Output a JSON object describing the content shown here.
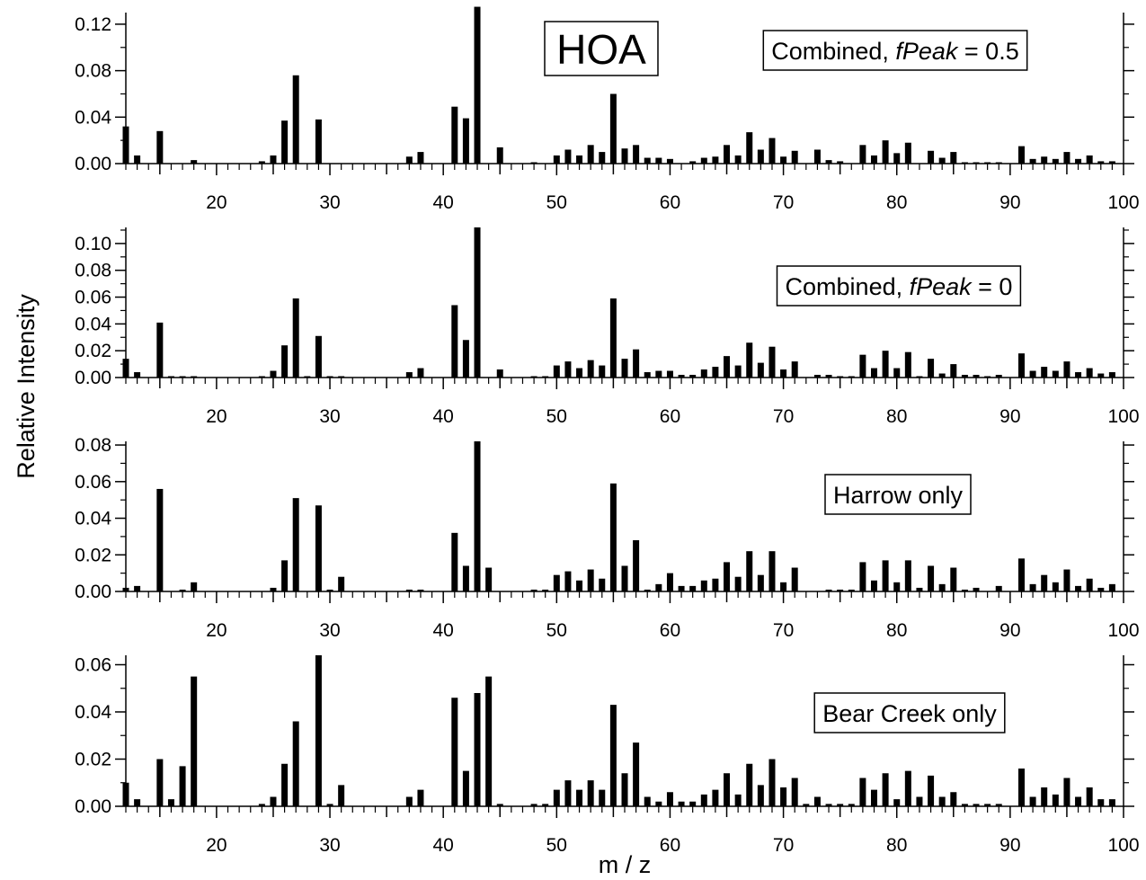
{
  "title": "HOA",
  "ylabel": "Relative Intensity",
  "xlabel": "m / z",
  "colors": {
    "bars": "#000000",
    "axes": "#000000",
    "background": "#ffffff"
  },
  "chart_data": [
    {
      "type": "bar",
      "label": {
        "text": "Combined, ",
        "italic": "fPeak",
        "suffix": " = 0.5"
      },
      "ylim": [
        0,
        0.13
      ],
      "yticks": [
        0.0,
        0.04,
        0.08,
        0.12
      ],
      "ytick_labels": [
        "0.00",
        "0.04",
        "0.08",
        "0.12"
      ],
      "xlim": [
        12,
        100
      ],
      "xticks": [
        20,
        30,
        40,
        50,
        60,
        70,
        80,
        90,
        100
      ],
      "x": [
        12,
        13,
        14,
        15,
        16,
        17,
        18,
        19,
        20,
        21,
        22,
        23,
        24,
        25,
        26,
        27,
        28,
        29,
        30,
        31,
        32,
        33,
        34,
        35,
        36,
        37,
        38,
        39,
        40,
        41,
        42,
        43,
        44,
        45,
        46,
        47,
        48,
        49,
        50,
        51,
        52,
        53,
        54,
        55,
        56,
        57,
        58,
        59,
        60,
        61,
        62,
        63,
        64,
        65,
        66,
        67,
        68,
        69,
        70,
        71,
        72,
        73,
        74,
        75,
        76,
        77,
        78,
        79,
        80,
        81,
        82,
        83,
        84,
        85,
        86,
        87,
        88,
        89,
        90,
        91,
        92,
        93,
        94,
        95,
        96,
        97,
        98,
        99
      ],
      "values": [
        0.032,
        0.007,
        0,
        0.028,
        0,
        0,
        0.003,
        0,
        0,
        0,
        0,
        0,
        0.002,
        0.007,
        0.037,
        0.076,
        0,
        0.038,
        0,
        0,
        0,
        0,
        0,
        0,
        0,
        0.006,
        0.01,
        0,
        0,
        0.049,
        0.039,
        0.135,
        0,
        0.014,
        0,
        0,
        0.001,
        0,
        0.007,
        0.012,
        0.007,
        0.016,
        0.01,
        0.06,
        0.013,
        0.016,
        0.005,
        0.005,
        0.004,
        0,
        0.002,
        0.005,
        0.006,
        0.016,
        0.007,
        0.027,
        0.012,
        0.022,
        0.006,
        0.011,
        0,
        0.012,
        0.003,
        0.002,
        0,
        0.016,
        0.007,
        0.02,
        0.009,
        0.018,
        0,
        0.011,
        0.005,
        0.01,
        0.001,
        0.001,
        0.001,
        0.001,
        0,
        0.015,
        0.004,
        0.006,
        0.004,
        0.01,
        0.004,
        0.007,
        0.002,
        0.002
      ]
    },
    {
      "type": "bar",
      "label": {
        "text": "Combined, ",
        "italic": "fPeak",
        "suffix": " = 0"
      },
      "ylim": [
        0,
        0.112
      ],
      "yticks": [
        0.0,
        0.02,
        0.04,
        0.06,
        0.08,
        0.1
      ],
      "ytick_labels": [
        "0.00",
        "0.02",
        "0.04",
        "0.06",
        "0.08",
        "0.10"
      ],
      "xlim": [
        12,
        100
      ],
      "xticks": [
        20,
        30,
        40,
        50,
        60,
        70,
        80,
        90,
        100
      ],
      "x": [
        12,
        13,
        14,
        15,
        16,
        17,
        18,
        19,
        20,
        21,
        22,
        23,
        24,
        25,
        26,
        27,
        28,
        29,
        30,
        31,
        32,
        33,
        34,
        35,
        36,
        37,
        38,
        39,
        40,
        41,
        42,
        43,
        44,
        45,
        46,
        47,
        48,
        49,
        50,
        51,
        52,
        53,
        54,
        55,
        56,
        57,
        58,
        59,
        60,
        61,
        62,
        63,
        64,
        65,
        66,
        67,
        68,
        69,
        70,
        71,
        72,
        73,
        74,
        75,
        76,
        77,
        78,
        79,
        80,
        81,
        82,
        83,
        84,
        85,
        86,
        87,
        88,
        89,
        90,
        91,
        92,
        93,
        94,
        95,
        96,
        97,
        98,
        99
      ],
      "values": [
        0.014,
        0.004,
        0,
        0.041,
        0.001,
        0.001,
        0.001,
        0,
        0,
        0,
        0,
        0,
        0.001,
        0.005,
        0.024,
        0.059,
        0.001,
        0.031,
        0.001,
        0.001,
        0,
        0,
        0,
        0,
        0,
        0.004,
        0.007,
        0,
        0,
        0.054,
        0.028,
        0.112,
        0,
        0.006,
        0,
        0,
        0.001,
        0.001,
        0.009,
        0.012,
        0.007,
        0.013,
        0.009,
        0.059,
        0.014,
        0.021,
        0.004,
        0.005,
        0.005,
        0.002,
        0.002,
        0.006,
        0.008,
        0.016,
        0.009,
        0.026,
        0.011,
        0.023,
        0.006,
        0.012,
        0,
        0.002,
        0.002,
        0.001,
        0.001,
        0.017,
        0.007,
        0.02,
        0.007,
        0.019,
        0.001,
        0.014,
        0.003,
        0.01,
        0.002,
        0.002,
        0.001,
        0.002,
        0,
        0.018,
        0.005,
        0.008,
        0.005,
        0.012,
        0.004,
        0.007,
        0.003,
        0.004
      ]
    },
    {
      "type": "bar",
      "label": {
        "text": "Harrow only",
        "italic": "",
        "suffix": ""
      },
      "ylim": [
        0,
        0.082
      ],
      "yticks": [
        0.0,
        0.02,
        0.04,
        0.06,
        0.08
      ],
      "ytick_labels": [
        "0.00",
        "0.02",
        "0.04",
        "0.06",
        "0.08"
      ],
      "xlim": [
        12,
        100
      ],
      "xticks": [
        20,
        30,
        40,
        50,
        60,
        70,
        80,
        90,
        100
      ],
      "x": [
        12,
        13,
        14,
        15,
        16,
        17,
        18,
        19,
        20,
        21,
        22,
        23,
        24,
        25,
        26,
        27,
        28,
        29,
        30,
        31,
        32,
        33,
        34,
        35,
        36,
        37,
        38,
        39,
        40,
        41,
        42,
        43,
        44,
        45,
        46,
        47,
        48,
        49,
        50,
        51,
        52,
        53,
        54,
        55,
        56,
        57,
        58,
        59,
        60,
        61,
        62,
        63,
        64,
        65,
        66,
        67,
        68,
        69,
        70,
        71,
        72,
        73,
        74,
        75,
        76,
        77,
        78,
        79,
        80,
        81,
        82,
        83,
        84,
        85,
        86,
        87,
        88,
        89,
        90,
        91,
        92,
        93,
        94,
        95,
        96,
        97,
        98,
        99
      ],
      "values": [
        0.002,
        0.003,
        0,
        0.056,
        0,
        0.001,
        0.005,
        0,
        0,
        0,
        0,
        0,
        0,
        0.002,
        0.017,
        0.051,
        0,
        0.047,
        0.001,
        0.008,
        0,
        0,
        0,
        0,
        0,
        0.001,
        0.001,
        0,
        0,
        0.032,
        0.014,
        0.082,
        0.013,
        0,
        0,
        0,
        0.001,
        0.001,
        0.009,
        0.011,
        0.006,
        0.012,
        0.007,
        0.059,
        0.014,
        0.028,
        0.001,
        0.004,
        0.01,
        0.003,
        0.003,
        0.006,
        0.007,
        0.016,
        0.008,
        0.022,
        0.009,
        0.022,
        0.005,
        0.013,
        0,
        0,
        0.001,
        0.001,
        0.001,
        0.016,
        0.006,
        0.017,
        0.005,
        0.017,
        0.002,
        0.014,
        0.004,
        0.013,
        0.001,
        0.002,
        0,
        0.003,
        0,
        0.018,
        0.004,
        0.009,
        0.005,
        0.012,
        0.003,
        0.007,
        0.002,
        0.004
      ]
    },
    {
      "type": "bar",
      "label": {
        "text": "Bear Creek only",
        "italic": "",
        "suffix": ""
      },
      "ylim": [
        0,
        0.064
      ],
      "yticks": [
        0.0,
        0.02,
        0.04,
        0.06
      ],
      "ytick_labels": [
        "0.00",
        "0.02",
        "0.04",
        "0.06"
      ],
      "xlim": [
        12,
        100
      ],
      "xticks": [
        20,
        30,
        40,
        50,
        60,
        70,
        80,
        90,
        100
      ],
      "x": [
        12,
        13,
        14,
        15,
        16,
        17,
        18,
        19,
        20,
        21,
        22,
        23,
        24,
        25,
        26,
        27,
        28,
        29,
        30,
        31,
        32,
        33,
        34,
        35,
        36,
        37,
        38,
        39,
        40,
        41,
        42,
        43,
        44,
        45,
        46,
        47,
        48,
        49,
        50,
        51,
        52,
        53,
        54,
        55,
        56,
        57,
        58,
        59,
        60,
        61,
        62,
        63,
        64,
        65,
        66,
        67,
        68,
        69,
        70,
        71,
        72,
        73,
        74,
        75,
        76,
        77,
        78,
        79,
        80,
        81,
        82,
        83,
        84,
        85,
        86,
        87,
        88,
        89,
        90,
        91,
        92,
        93,
        94,
        95,
        96,
        97,
        98,
        99
      ],
      "values": [
        0.01,
        0.003,
        0,
        0.02,
        0.003,
        0.017,
        0.055,
        0,
        0,
        0,
        0,
        0,
        0.001,
        0.004,
        0.018,
        0.036,
        0,
        0.064,
        0.001,
        0.009,
        0,
        0,
        0,
        0,
        0,
        0.004,
        0.007,
        0,
        0,
        0.046,
        0.015,
        0.048,
        0.055,
        0.001,
        0,
        0,
        0.001,
        0.001,
        0.007,
        0.011,
        0.007,
        0.011,
        0.007,
        0.043,
        0.014,
        0.027,
        0.004,
        0.002,
        0.006,
        0.002,
        0.002,
        0.005,
        0.007,
        0.014,
        0.005,
        0.018,
        0.009,
        0.02,
        0.008,
        0.012,
        0.001,
        0.004,
        0.001,
        0.001,
        0.001,
        0.012,
        0.007,
        0.014,
        0.003,
        0.015,
        0.004,
        0.013,
        0.004,
        0.006,
        0.001,
        0.001,
        0.001,
        0.001,
        0,
        0.016,
        0.004,
        0.008,
        0.005,
        0.012,
        0.004,
        0.008,
        0.003,
        0.003
      ]
    }
  ]
}
